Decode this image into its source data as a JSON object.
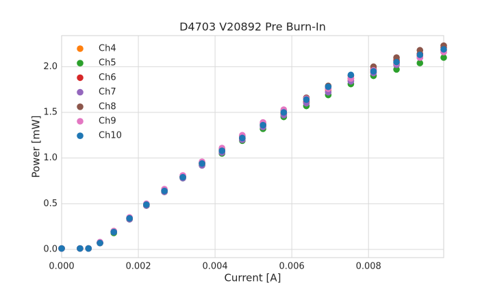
{
  "chart_data": {
    "type": "scatter",
    "title": "D4703 V20892 Pre Burn-In",
    "x_label": "Current [A]",
    "y_label": "Power [mW]",
    "x": [
      0,
      0.00048,
      0.0007,
      0.001,
      0.00136,
      0.00177,
      0.00221,
      0.00268,
      0.00316,
      0.00366,
      0.00418,
      0.00471,
      0.00525,
      0.00579,
      0.00638,
      0.00695,
      0.00754,
      0.00813,
      0.00873,
      0.00934,
      0.00996
    ],
    "series": [
      {
        "name": "Ch4",
        "color": "#ff7f0e",
        "values": [
          0.01,
          0.01,
          0.01,
          0.07,
          0.19,
          0.34,
          0.48,
          0.63,
          0.79,
          0.93,
          1.07,
          1.21,
          1.35,
          1.48,
          1.61,
          1.74,
          1.85,
          1.94,
          2.03,
          2.12,
          2.18
        ]
      },
      {
        "name": "Ch5",
        "color": "#2ca02c",
        "values": [
          0.01,
          0.01,
          0.01,
          0.07,
          0.18,
          0.33,
          0.48,
          0.63,
          0.78,
          0.92,
          1.05,
          1.19,
          1.32,
          1.45,
          1.57,
          1.69,
          1.81,
          1.9,
          1.97,
          2.04,
          2.1
        ]
      },
      {
        "name": "Ch6",
        "color": "#d62728",
        "values": [
          0.01,
          0.01,
          0.01,
          0.07,
          0.19,
          0.34,
          0.49,
          0.64,
          0.79,
          0.94,
          1.08,
          1.22,
          1.36,
          1.49,
          1.62,
          1.76,
          1.87,
          1.97,
          2.07,
          2.14,
          2.21
        ]
      },
      {
        "name": "Ch7",
        "color": "#9467bd",
        "values": [
          0.01,
          0.01,
          0.01,
          0.07,
          0.19,
          0.33,
          0.48,
          0.63,
          0.78,
          0.92,
          1.06,
          1.2,
          1.34,
          1.47,
          1.6,
          1.72,
          1.84,
          1.93,
          2.02,
          2.1,
          2.16
        ]
      },
      {
        "name": "Ch8",
        "color": "#8c564b",
        "values": [
          0.01,
          0.01,
          0.01,
          0.07,
          0.2,
          0.34,
          0.49,
          0.65,
          0.8,
          0.95,
          1.1,
          1.24,
          1.38,
          1.52,
          1.66,
          1.79,
          1.9,
          2.0,
          2.1,
          2.18,
          2.23
        ]
      },
      {
        "name": "Ch9",
        "color": "#e377c2",
        "values": [
          0.01,
          0.01,
          0.01,
          0.08,
          0.2,
          0.35,
          0.5,
          0.66,
          0.81,
          0.96,
          1.11,
          1.25,
          1.39,
          1.53,
          1.65,
          1.76,
          1.87,
          1.96,
          2.04,
          2.1,
          2.16
        ]
      },
      {
        "name": "Ch10",
        "color": "#1f77b4",
        "values": [
          0.01,
          0.01,
          0.01,
          0.07,
          0.19,
          0.34,
          0.49,
          0.64,
          0.79,
          0.94,
          1.08,
          1.22,
          1.36,
          1.5,
          1.64,
          1.78,
          1.91,
          1.95,
          2.05,
          2.13,
          2.19
        ]
      }
    ],
    "xlim": [
      0,
      0.00996
    ],
    "ylim": [
      -0.09,
      2.34
    ],
    "xticks": [
      {
        "value": 0,
        "label": "0.000"
      },
      {
        "value": 0.002,
        "label": "0.002"
      },
      {
        "value": 0.004,
        "label": "0.004"
      },
      {
        "value": 0.006,
        "label": "0.006"
      },
      {
        "value": 0.008,
        "label": "0.008"
      }
    ],
    "yticks": [
      {
        "value": 0,
        "label": "0.0"
      },
      0.5,
      {
        "value": 1,
        "label": "1.0"
      },
      1.5,
      {
        "value": 2,
        "label": "2.0"
      }
    ],
    "grid": true,
    "legend": "upper left"
  }
}
